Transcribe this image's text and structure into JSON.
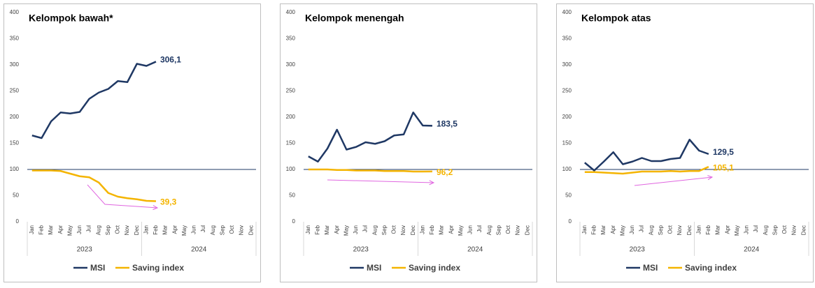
{
  "chart_data": [
    {
      "type": "line",
      "title": "Kelompok bawah*",
      "categories": [
        "Jan",
        "Feb",
        "Mar",
        "Apr",
        "May",
        "Jun",
        "Jul",
        "Aug",
        "Sep",
        "Oct",
        "Nov",
        "Dec",
        "Jan",
        "Feb",
        "Mar",
        "Apr",
        "May",
        "Jun",
        "Jul",
        "Aug",
        "Sep",
        "Oct",
        "Nov",
        "Dec"
      ],
      "x_groups": [
        "2023",
        "2024"
      ],
      "ylim": [
        0,
        400
      ],
      "yticks": [
        0,
        50,
        100,
        150,
        200,
        250,
        300,
        350,
        400
      ],
      "hline": 100,
      "series": [
        {
          "name": "MSI",
          "color": "#1f3864",
          "values": [
            165,
            160,
            192,
            209,
            207,
            210,
            235,
            247,
            254,
            269,
            267,
            302,
            298,
            306.1,
            null,
            null,
            null,
            null,
            null,
            null,
            null,
            null,
            null,
            null
          ],
          "value_labels": [
            null,
            null,
            null,
            null,
            null,
            null,
            null,
            null,
            null,
            null,
            null,
            null,
            null,
            "306,1",
            null,
            null,
            null,
            null,
            null,
            null,
            null,
            null,
            null,
            null
          ]
        },
        {
          "name": "Saving index",
          "color": "#f4b400",
          "values": [
            98,
            98,
            98,
            97,
            92,
            87,
            85,
            75,
            55,
            48,
            45,
            43,
            40,
            39.3,
            null,
            null,
            null,
            null,
            null,
            null,
            null,
            null,
            null,
            null
          ],
          "value_labels": [
            null,
            null,
            null,
            null,
            null,
            null,
            null,
            null,
            null,
            null,
            null,
            null,
            null,
            "39,3",
            null,
            null,
            null,
            null,
            null,
            null,
            null,
            null,
            null,
            null
          ]
        }
      ]
    },
    {
      "type": "line",
      "title": "Kelompok menengah",
      "categories": [
        "Jan",
        "Feb",
        "Mar",
        "Apr",
        "May",
        "Jun",
        "Jul",
        "Aug",
        "Sep",
        "Oct",
        "Nov",
        "Dec",
        "Jan",
        "Feb",
        "Mar",
        "Apr",
        "May",
        "Jun",
        "Jul",
        "Aug",
        "Sep",
        "Oct",
        "Nov",
        "Dec"
      ],
      "x_groups": [
        "2023",
        "2024"
      ],
      "ylim": [
        0,
        400
      ],
      "yticks": [
        0,
        50,
        100,
        150,
        200,
        250,
        300,
        350,
        400
      ],
      "hline": 100,
      "series": [
        {
          "name": "MSI",
          "color": "#1f3864",
          "values": [
            125,
            115,
            140,
            176,
            138,
            143,
            152,
            149,
            154,
            165,
            167,
            209,
            184,
            183.5,
            null,
            null,
            null,
            null,
            null,
            null,
            null,
            null,
            null,
            null
          ],
          "value_labels": [
            null,
            null,
            null,
            null,
            null,
            null,
            null,
            null,
            null,
            null,
            null,
            null,
            null,
            "183,5",
            null,
            null,
            null,
            null,
            null,
            null,
            null,
            null,
            null,
            null
          ]
        },
        {
          "name": "Saving index",
          "color": "#f4b400",
          "values": [
            100,
            100,
            100,
            99,
            99,
            98,
            98,
            98,
            97,
            97,
            97,
            96,
            96,
            96.2,
            null,
            null,
            null,
            null,
            null,
            null,
            null,
            null,
            null,
            null
          ],
          "value_labels": [
            null,
            null,
            null,
            null,
            null,
            null,
            null,
            null,
            null,
            null,
            null,
            null,
            null,
            "96,2",
            null,
            null,
            null,
            null,
            null,
            null,
            null,
            null,
            null,
            null
          ]
        }
      ]
    },
    {
      "type": "line",
      "title": "Kelompok atas",
      "categories": [
        "Jan",
        "Feb",
        "Mar",
        "Apr",
        "May",
        "Jun",
        "Jul",
        "Aug",
        "Sep",
        "Oct",
        "Nov",
        "Dec",
        "Jan",
        "Feb",
        "Mar",
        "Apr",
        "May",
        "Jun",
        "Jul",
        "Aug",
        "Sep",
        "Oct",
        "Nov",
        "Dec"
      ],
      "x_groups": [
        "2023",
        "2024"
      ],
      "ylim": [
        0,
        400
      ],
      "yticks": [
        0,
        50,
        100,
        150,
        200,
        250,
        300,
        350,
        400
      ],
      "hline": 100,
      "series": [
        {
          "name": "MSI",
          "color": "#1f3864",
          "values": [
            113,
            98,
            115,
            133,
            110,
            115,
            122,
            116,
            116,
            120,
            122,
            157,
            136,
            129.5,
            null,
            null,
            null,
            null,
            null,
            null,
            null,
            null,
            null,
            null
          ],
          "value_labels": [
            null,
            null,
            null,
            null,
            null,
            null,
            null,
            null,
            null,
            null,
            null,
            null,
            null,
            "129,5",
            null,
            null,
            null,
            null,
            null,
            null,
            null,
            null,
            null,
            null
          ]
        },
        {
          "name": "Saving index",
          "color": "#f4b400",
          "values": [
            95,
            95,
            94,
            93,
            92,
            94,
            96,
            96,
            96,
            97,
            96,
            97,
            97,
            105.1,
            null,
            null,
            null,
            null,
            null,
            null,
            null,
            null,
            null,
            null
          ],
          "value_labels": [
            null,
            null,
            null,
            null,
            null,
            null,
            null,
            null,
            null,
            null,
            null,
            null,
            null,
            "105,1",
            null,
            null,
            null,
            null,
            null,
            null,
            null,
            null,
            null,
            null
          ]
        }
      ]
    }
  ]
}
